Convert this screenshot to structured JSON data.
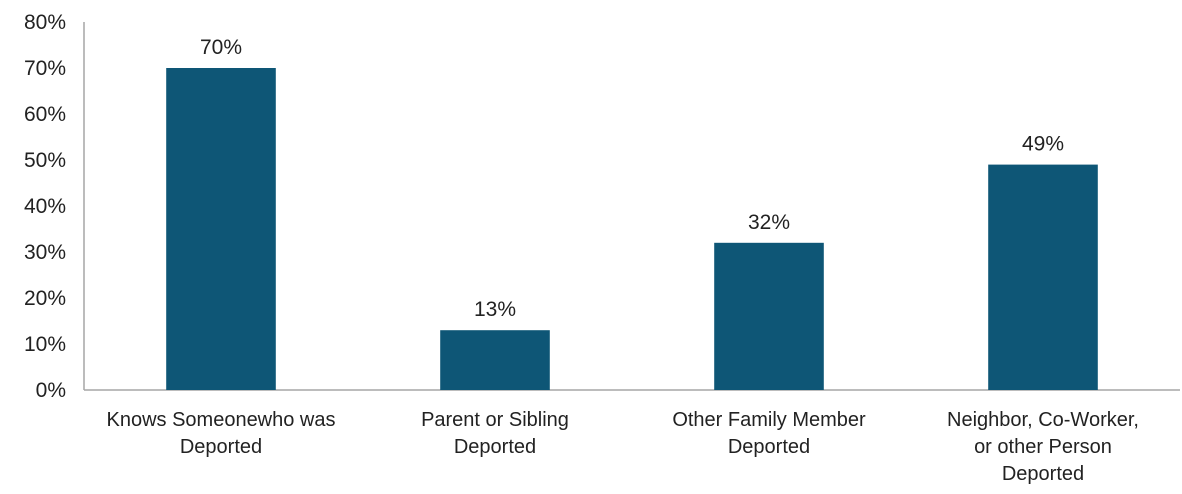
{
  "chart_data": {
    "type": "bar",
    "title": "",
    "xlabel": "",
    "ylabel": "",
    "ylim": [
      0,
      80
    ],
    "yticks": [
      "0%",
      "10%",
      "20%",
      "30%",
      "40%",
      "50%",
      "60%",
      "70%",
      "80%"
    ],
    "grid": false,
    "legend": "none",
    "bar_color": "#0e5676",
    "categories": [
      [
        "Knows Someonewho was",
        "Deported"
      ],
      [
        "Parent or Sibling",
        "Deported"
      ],
      [
        "Other Family Member",
        "Deported"
      ],
      [
        "Neighbor, Co-Worker,",
        "or other Person",
        "Deported"
      ]
    ],
    "values": [
      70,
      13,
      32,
      49
    ],
    "data_labels": [
      "70%",
      "13%",
      "32%",
      "49%"
    ]
  }
}
